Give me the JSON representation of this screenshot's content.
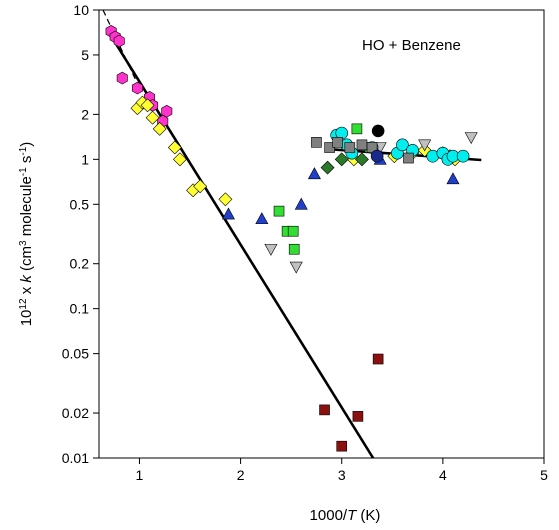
{
  "chart_data": {
    "type": "scatter",
    "title": "",
    "annotation": "HO + Benzene",
    "xlabel": {
      "pre": "1000/",
      "italic": "T",
      "post": " (K)"
    },
    "ylabel": {
      "p1": "10",
      "s1": "12",
      "p2": " x ",
      "k": "k",
      "p3": " (cm",
      "s2": "3",
      "p4": " molecule",
      "s3": "-1",
      "p5": " s",
      "s4": "-1",
      "p6": ")"
    },
    "xlim": [
      0.6,
      5
    ],
    "ylim": [
      0.01,
      10
    ],
    "yscale": "log",
    "x_ticks": [
      1,
      2,
      3,
      4,
      5
    ],
    "x_tick_labels": [
      "1",
      "2",
      "3",
      "4",
      "5"
    ],
    "y_ticks": [
      0.01,
      0.02,
      0.05,
      0.1,
      0.2,
      0.5,
      1,
      2,
      5,
      10
    ],
    "y_tick_labels": [
      "0.01",
      "0.02",
      "0.05",
      "0.1",
      "0.2",
      "0.5",
      "1",
      "2",
      "5",
      "10"
    ],
    "grid": false,
    "lines": [
      {
        "style": "solid",
        "x": [
          0.68,
          3.31
        ],
        "y": [
          7.4,
          0.01
        ]
      },
      {
        "style": "dashed",
        "x": [
          0.64,
          1.0
        ],
        "y": [
          10.0,
          3.0
        ]
      },
      {
        "style": "solid",
        "x": [
          2.88,
          4.38
        ],
        "y": [
          1.17,
          0.99
        ]
      }
    ],
    "series": [
      {
        "marker": "hexagon",
        "color": "#ff33cc",
        "x": [
          0.72,
          0.76,
          0.8,
          0.83,
          0.98,
          1.1,
          1.13,
          1.23,
          1.27
        ],
        "y": [
          7.2,
          6.6,
          6.2,
          3.5,
          3.0,
          2.6,
          2.3,
          1.8,
          2.1
        ]
      },
      {
        "marker": "diamond",
        "color": "#ffff33",
        "x": [
          0.98,
          1.03,
          1.08,
          1.13,
          1.2,
          1.35,
          1.4,
          1.53,
          1.6,
          1.85,
          3.12,
          3.52,
          3.7,
          3.82,
          4.0,
          4.07,
          4.12
        ],
        "y": [
          2.2,
          2.4,
          2.3,
          1.9,
          1.6,
          1.2,
          1.0,
          0.62,
          0.66,
          0.54,
          1.0,
          1.05,
          1.1,
          1.15,
          1.1,
          1.05,
          1.0
        ]
      },
      {
        "marker": "triangle-up",
        "color": "#1f3fcc",
        "x": [
          1.88,
          2.21,
          2.6,
          2.73,
          3.38,
          4.1
        ],
        "y": [
          0.43,
          0.4,
          0.5,
          0.8,
          1.0,
          0.74
        ]
      },
      {
        "marker": "triangle-down",
        "color": "#c0c0c0",
        "x": [
          2.3,
          2.55,
          3.38,
          3.82,
          4.28
        ],
        "y": [
          0.25,
          0.19,
          1.2,
          1.25,
          1.4
        ]
      },
      {
        "marker": "square",
        "color": "#33dd33",
        "x": [
          2.38,
          2.46,
          2.52,
          2.53,
          3.15,
          3.28
        ],
        "y": [
          0.45,
          0.33,
          0.33,
          0.25,
          1.6,
          1.2
        ]
      },
      {
        "marker": "diamond",
        "color": "#2a7a2a",
        "x": [
          2.86,
          3.0,
          3.2
        ],
        "y": [
          0.88,
          1.0,
          1.0
        ]
      },
      {
        "marker": "circle",
        "color": "#00eeee",
        "x": [
          2.95,
          3.0,
          3.05,
          3.1,
          3.3,
          3.55,
          3.6,
          3.7,
          3.9,
          4.0,
          4.05,
          4.1,
          4.2
        ],
        "y": [
          1.45,
          1.5,
          1.25,
          1.1,
          1.2,
          1.1,
          1.25,
          1.15,
          1.05,
          1.1,
          1.0,
          1.05,
          1.05
        ]
      },
      {
        "marker": "square",
        "color": "#808080",
        "x": [
          2.75,
          2.88,
          2.96,
          3.08,
          3.2,
          3.3,
          3.66
        ],
        "y": [
          1.3,
          1.2,
          1.3,
          1.2,
          1.25,
          1.2,
          1.02
        ]
      },
      {
        "marker": "circle",
        "color": "#000000",
        "x": [
          3.36
        ],
        "y": [
          1.55
        ]
      },
      {
        "marker": "circle",
        "color": "#1a2a8c",
        "x": [
          3.35
        ],
        "y": [
          1.05
        ]
      },
      {
        "marker": "square",
        "color": "#8b1010",
        "x": [
          2.83,
          3.0,
          3.16,
          3.36
        ],
        "y": [
          0.021,
          0.012,
          0.019,
          0.046
        ]
      }
    ]
  }
}
